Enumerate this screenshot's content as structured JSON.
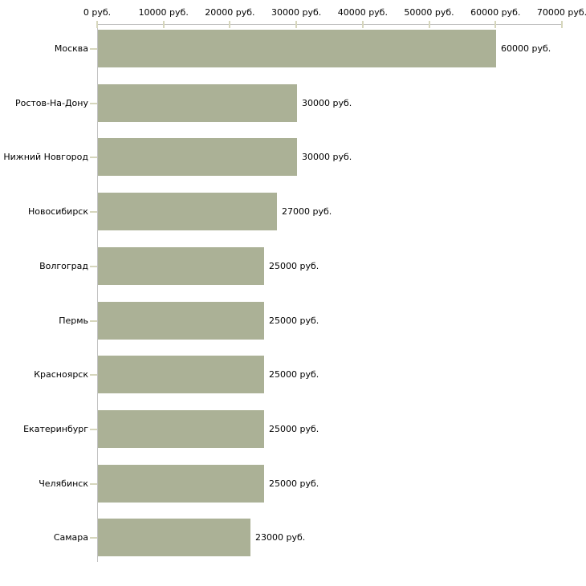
{
  "chart_data": {
    "type": "bar",
    "orientation": "horizontal",
    "title": "",
    "xlabel": "",
    "ylabel": "",
    "grid": false,
    "legend": false,
    "categories": [
      "Москва",
      "Ростов-На-Дону",
      "Нижний Новгород",
      "Новосибирск",
      "Волгоград",
      "Пермь",
      "Красноярск",
      "Екатеринбург",
      "Челябинск",
      "Самара"
    ],
    "values": [
      60000,
      30000,
      30000,
      27000,
      25000,
      25000,
      25000,
      25000,
      25000,
      23000
    ],
    "value_labels": [
      "60000 руб.",
      "30000 руб.",
      "30000 руб.",
      "27000 руб.",
      "25000 руб.",
      "25000 руб.",
      "25000 руб.",
      "25000 руб.",
      "25000 руб.",
      "23000 руб."
    ],
    "x_axis": {
      "position": "top",
      "min": 0,
      "max": 70000,
      "ticks": [
        0,
        10000,
        20000,
        30000,
        40000,
        50000,
        60000,
        70000
      ],
      "tick_labels": [
        "0 руб.",
        "10000 руб.",
        "20000 руб.",
        "30000 руб.",
        "40000 руб.",
        "50000 руб.",
        "60000 руб.",
        "70000 руб."
      ]
    },
    "colors": {
      "bar": "#abb196",
      "axis_line": "#c2c2c2",
      "tick_mark": "#d6d6bc",
      "text": "#000000",
      "background": "#ffffff"
    }
  }
}
